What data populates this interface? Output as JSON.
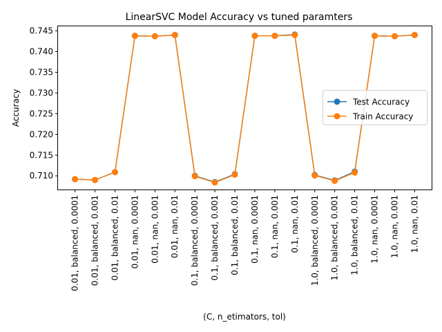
{
  "chart_data": {
    "type": "line",
    "title": "LinearSVC Model Accuracy vs tuned paramters",
    "xlabel": "(C, n_etimators, tol)",
    "ylabel": "Accuracy",
    "categories": [
      "0.01, balanced, 0.0001",
      "0.01, balanced, 0.001",
      "0.01, balanced, 0.01",
      "0.01, nan, 0.0001",
      "0.01, nan, 0.001",
      "0.01, nan, 0.01",
      "0.1, balanced, 0.0001",
      "0.1, balanced, 0.001",
      "0.1, balanced, 0.01",
      "0.1, nan, 0.0001",
      "0.1, nan, 0.001",
      "0.1, nan, 0.01",
      "1.0, balanced, 0.0001",
      "1.0, balanced, 0.001",
      "1.0, balanced, 0.01",
      "1.0, nan, 0.0001",
      "1.0, nan, 0.001",
      "1.0, nan, 0.01"
    ],
    "series": [
      {
        "name": "Test Accuracy",
        "color": "#1f77b4",
        "values": [
          0.7092,
          0.709,
          0.7109,
          0.7438,
          0.7437,
          0.744,
          0.71,
          0.7085,
          0.7104,
          0.7438,
          0.7438,
          0.7441,
          0.7102,
          0.7089,
          0.711,
          0.7438,
          0.7437,
          0.744
        ]
      },
      {
        "name": "Train Accuracy",
        "color": "#ff7f0e",
        "values": [
          0.7092,
          0.709,
          0.7109,
          0.7438,
          0.7437,
          0.744,
          0.7099,
          0.7084,
          0.7103,
          0.7438,
          0.7438,
          0.744,
          0.7101,
          0.7088,
          0.7108,
          0.7438,
          0.7437,
          0.744
        ]
      }
    ],
    "ylim": [
      0.7067,
      0.7461
    ],
    "yticks": [
      "0.710",
      "0.715",
      "0.720",
      "0.725",
      "0.730",
      "0.735",
      "0.740",
      "0.745"
    ],
    "ytick_values": [
      0.71,
      0.715,
      0.72,
      0.725,
      0.73,
      0.735,
      0.74,
      0.745
    ],
    "grid": false,
    "legend_position": "center-right"
  }
}
